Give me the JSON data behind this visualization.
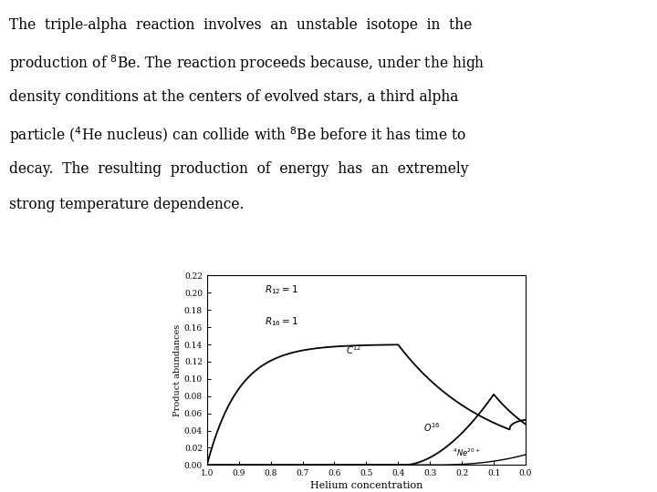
{
  "xlabel": "Helium concentration",
  "ylabel": "Product abundances",
  "xlim": [
    1.0,
    0.0
  ],
  "ylim": [
    0.0,
    0.22
  ],
  "yticks": [
    0.0,
    0.02,
    0.04,
    0.06,
    0.08,
    0.1,
    0.12,
    0.14,
    0.16,
    0.18,
    0.2,
    0.22
  ],
  "xticks": [
    1.0,
    0.9,
    0.8,
    0.7,
    0.6,
    0.5,
    0.4,
    0.3,
    0.2,
    0.1,
    0.0
  ],
  "annotation_r12": "$R_{12} = 1$",
  "annotation_r16": "$R_{16} = 1$",
  "label_c12": "$C^{12}$",
  "label_o16": "$O^{16}$",
  "label_ne20": "$^{4}Ne^{20+}$",
  "bg_color": "#ffffff",
  "line_color": "#000000",
  "text_line1": "The  triple-alpha  reaction  involves  an  unstable  isotope  in  the",
  "text_line2": "production of $^{8}$Be. The reaction proceeds because, under the high",
  "text_line3": "density conditions at the centers of evolved stars, a third alpha",
  "text_line4": "particle ($^{4}$He nucleus) can collide with $^{8}$Be before it has time to",
  "text_line5": "decay.  The  resulting  production  of  energy  has  an  extremely",
  "text_line6": "strong temperature dependence."
}
